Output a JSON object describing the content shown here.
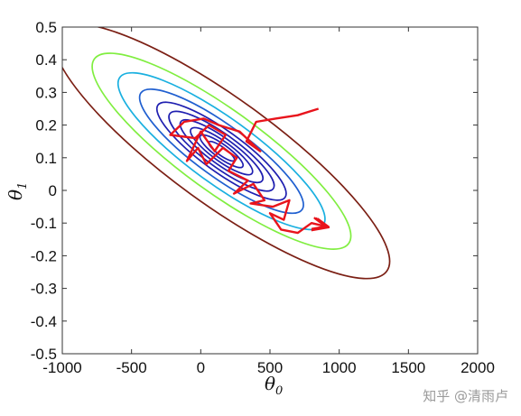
{
  "chart_data": {
    "type": "contour",
    "xlim": [
      -1000,
      2000
    ],
    "ylim": [
      -0.5,
      0.5
    ],
    "xticks": [
      "-1000",
      "-500",
      "0",
      "500",
      "1000",
      "1500",
      "2000"
    ],
    "yticks": [
      "0.5",
      "0.4",
      "0.3",
      "0.2",
      "0.1",
      "0",
      "-0.1",
      "-0.2",
      "-0.3",
      "-0.4",
      "-0.5"
    ],
    "xlabel": {
      "symbol": "θ",
      "sub": "0"
    },
    "ylabel": {
      "symbol": "θ",
      "sub": "1"
    },
    "contours": {
      "center": [
        150,
        0.12
      ],
      "levels": [
        {
          "r": 0.3,
          "color": "#1f1fb0"
        },
        {
          "r": 0.5,
          "color": "#1f1fb0"
        },
        {
          "r": 0.72,
          "color": "#1f1fb0"
        },
        {
          "r": 0.96,
          "color": "#1f1fb0"
        },
        {
          "r": 1.22,
          "color": "#1f1fb0"
        },
        {
          "r": 1.5,
          "color": "#1f1fb0"
        },
        {
          "r": 1.9,
          "color": "#1f5fd0"
        },
        {
          "r": 2.4,
          "color": "#1ab0e0"
        },
        {
          "r": 3.0,
          "color": "#80ee40"
        },
        {
          "r": 3.9,
          "color": "#7b1f14"
        }
      ]
    },
    "path": [
      [
        850,
        0.25
      ],
      [
        700,
        0.23
      ],
      [
        540,
        0.22
      ],
      [
        400,
        0.21
      ],
      [
        330,
        0.15
      ],
      [
        430,
        0.12
      ],
      [
        280,
        0.18
      ],
      [
        130,
        0.2
      ],
      [
        20,
        0.22
      ],
      [
        -120,
        0.21
      ],
      [
        -220,
        0.17
      ],
      [
        -40,
        0.16
      ],
      [
        60,
        0.2
      ],
      [
        180,
        0.17
      ],
      [
        100,
        0.12
      ],
      [
        0,
        0.18
      ],
      [
        -100,
        0.09
      ],
      [
        -20,
        0.13
      ],
      [
        40,
        0.08
      ],
      [
        160,
        0.13
      ],
      [
        260,
        0.1
      ],
      [
        200,
        0.06
      ],
      [
        340,
        0.03
      ],
      [
        240,
        -0.01
      ],
      [
        380,
        0.02
      ],
      [
        460,
        -0.03
      ],
      [
        360,
        -0.04
      ],
      [
        520,
        -0.05
      ],
      [
        640,
        -0.03
      ],
      [
        600,
        -0.09
      ],
      [
        500,
        -0.07
      ],
      [
        580,
        -0.12
      ],
      [
        700,
        -0.13
      ],
      [
        800,
        -0.1
      ],
      [
        900,
        -0.11
      ]
    ],
    "path_color": "#e8141c"
  },
  "watermark": "知乎 @清雨卢"
}
